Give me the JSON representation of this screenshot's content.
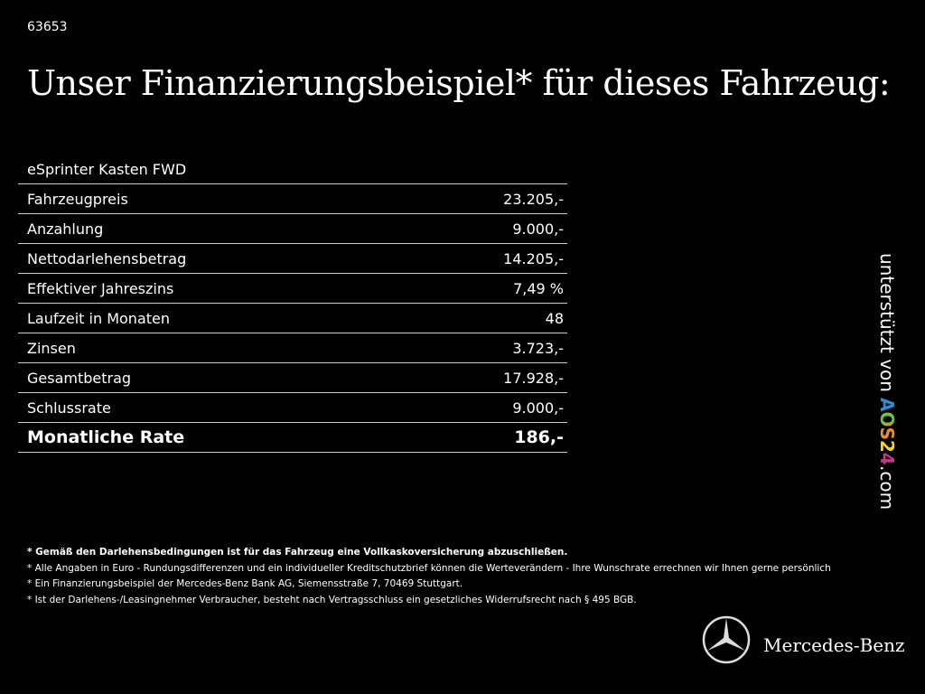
{
  "header": {
    "id": "63653",
    "title": "Unser Finanzierungsbeispiel* für dieses Fahrzeug:"
  },
  "table": {
    "title": "eSprinter Kasten FWD",
    "rows": [
      [
        "Fahrzeugpreis",
        "23.205,-"
      ],
      [
        "Anzahlung",
        "9.000,-"
      ],
      [
        "Nettodarlehensbetrag",
        "14.205,-"
      ],
      [
        "Effektiver Jahreszins",
        "7,49 %"
      ],
      [
        "Laufzeit in Monaten",
        "48"
      ],
      [
        "Zinsen",
        "3.723,-"
      ],
      [
        "Gesamtbetrag",
        "17.928,-"
      ],
      [
        "Schlussrate",
        "9.000,-"
      ],
      [
        "Monatliche Rate",
        "186,-"
      ]
    ]
  },
  "footnotes": [
    "* Gemäß den Darlehensbedingungen ist für das Fahrzeug eine Vollkaskoversicherung abzuschließen.",
    "* Alle Angaben in Euro - Rundungsdifferenzen und ein individueller Kreditschutzbrief können die Werteverändern - Ihre Wunschrate errechnen wir Ihnen gerne persönlich",
    "* Ein Finanzierungsbeispiel der Mercedes-Benz Bank AG, Siemensstraße 7, 70469 Stuttgart.",
    "* Ist der Darlehens-/Leasingnehmer Verbraucher, besteht nach Vertragsschluss ein gesetzliches Widerrufsrecht nach § 495 BGB."
  ],
  "sidebar": {
    "text": "unterstützt von ",
    "brand": "AOS24",
    "suffix": ".com"
  },
  "logo": {
    "text": "Mercedes-Benz"
  }
}
